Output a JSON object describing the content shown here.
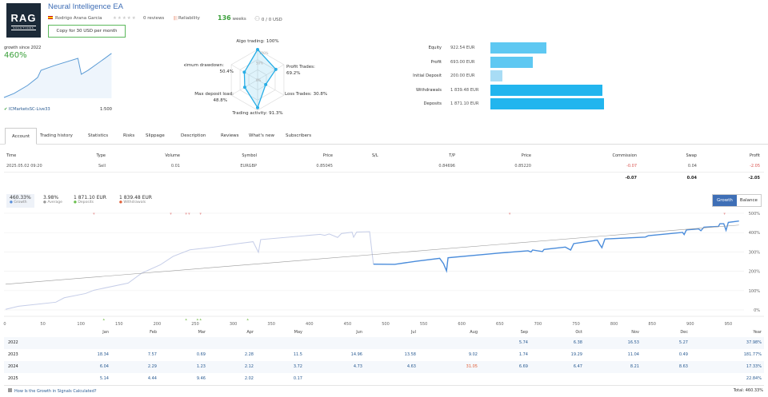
{
  "header": {
    "logo_text": "RAG",
    "logo_sub": "SOLUTIONS",
    "title": "Neural Intelligence EA",
    "author": "Rodrigo Arana Garcia",
    "reviews": "0 reviews",
    "reliability": "Reliability",
    "weeks_value": "136",
    "weeks_label": "weeks",
    "subscribers_funds": "0 / 0 USD",
    "copy_button": "Copy for 30 USD per month",
    "stars": 0
  },
  "summary": {
    "growth_label": "growth since 2022",
    "growth_value": "460%",
    "broker": "ICMarketsSC-Live33",
    "leverage": "1:500"
  },
  "radar": {
    "axes": [
      {
        "label": "Algo trading:",
        "value_text": "100%",
        "value": 100
      },
      {
        "label": "Profit Trades:",
        "value_text": "69.2%",
        "value": 69.2
      },
      {
        "label": "Loss Trades:",
        "value_text": "30.8%",
        "value": 30.8
      },
      {
        "label": "Trading activity:",
        "value_text": "91.3%",
        "value": 91.3
      },
      {
        "label": "Max deposit load:",
        "value_text": "48.8%",
        "value": 48.8
      },
      {
        "label": "Maximum drawdown:",
        "value_text": "50.4%",
        "value": 50.4
      }
    ],
    "grid_labels": [
      "100%",
      "50%",
      "0%"
    ],
    "color": "#29aee6"
  },
  "balance_bars": [
    {
      "label": "Equity",
      "value_text": "922.54 EUR",
      "value": 922.54,
      "color": "#5ec8f2"
    },
    {
      "label": "Profit",
      "value_text": "693.00 EUR",
      "value": 693.0,
      "color": "#5ec8f2"
    },
    {
      "label": "Initial Deposit",
      "value_text": "200.00 EUR",
      "value": 200.0,
      "color": "#a8dcf5"
    },
    {
      "label": "Withdrawals",
      "value_text": "1 839.48 EUR",
      "value": 1839.48,
      "color": "#22b5ee"
    },
    {
      "label": "Deposits",
      "value_text": "1 871.10 EUR",
      "value": 1871.1,
      "color": "#22b5ee"
    }
  ],
  "tabs": [
    "Account",
    "Trading history",
    "Statistics",
    "Risks",
    "Slippage",
    "Description",
    "Reviews",
    "What's new",
    "Subscribers"
  ],
  "positions": {
    "headers": [
      "Time",
      "Type",
      "Volume",
      "Symbol",
      "Price",
      "S/L",
      "T/P",
      "Price",
      "Commission",
      "Swap",
      "Profit"
    ],
    "rows": [
      [
        "2025.05.02 09:20",
        "Sell",
        "0.01",
        "EURGBP",
        "0.85045",
        "",
        "0.84696",
        "0.85220",
        "-0.07",
        "0.04",
        "-2.05"
      ]
    ],
    "totals": {
      "commission": "-0.07",
      "swap": "0.04",
      "profit": "-2.05"
    }
  },
  "stats": [
    {
      "value": "460.33%",
      "label": "Growth",
      "color": "#5b8fd9"
    },
    {
      "value": "3.98%",
      "label": "Average",
      "color": "#999999"
    },
    {
      "value": "1 871.10 EUR",
      "label": "Deposits",
      "color": "#6bbf4e"
    },
    {
      "value": "1 839.48 EUR",
      "label": "Withdrawals",
      "color": "#e0603a"
    }
  ],
  "chart_toggle": {
    "growth": "Growth",
    "balance": "Balance"
  },
  "chart_data": [
    {
      "type": "line",
      "xlim": [
        0,
        964
      ],
      "ylim": [
        0,
        500
      ],
      "grid": true,
      "x_ticks": [
        0,
        50,
        100,
        150,
        200,
        250,
        300,
        350,
        400,
        450,
        500,
        550,
        600,
        650,
        700,
        750,
        800,
        850,
        900,
        950
      ],
      "y_ticks": [
        "0%",
        "100%",
        "200%",
        "300%",
        "400%",
        "500%"
      ],
      "series": [
        {
          "color": "#c5cde8",
          "points": [
            [
              1,
              3
            ],
            [
              18,
              19
            ],
            [
              67,
              40
            ],
            [
              78,
              63
            ],
            [
              106,
              85
            ],
            [
              117,
              102
            ],
            [
              162,
              139
            ],
            [
              180,
              191
            ],
            [
              204,
              233
            ],
            [
              221,
              277
            ],
            [
              243,
              311
            ],
            [
              274,
              325
            ],
            [
              306,
              343
            ],
            [
              326,
              353
            ],
            [
              333,
              298
            ],
            [
              336,
              364
            ],
            [
              414,
              391
            ],
            [
              420,
              386
            ],
            [
              426,
              393
            ],
            [
              437,
              375
            ],
            [
              442,
              395
            ],
            [
              456,
              402
            ],
            [
              458,
              376
            ],
            [
              462,
              403
            ],
            [
              479,
              405
            ],
            [
              484,
              237
            ]
          ]
        },
        {
          "color": "#4a8cdb",
          "points": [
            [
              484,
              237
            ],
            [
              512,
              236
            ],
            [
              540,
              252
            ],
            [
              571,
              267
            ],
            [
              576,
              240
            ],
            [
              580,
              202
            ],
            [
              582,
              270
            ],
            [
              652,
              295
            ],
            [
              687,
              306
            ],
            [
              691,
              300
            ],
            [
              693,
              310
            ],
            [
              706,
              302
            ],
            [
              708,
              313
            ],
            [
              736,
              325
            ],
            [
              743,
              310
            ],
            [
              747,
              343
            ],
            [
              778,
              361
            ],
            [
              781,
              340
            ],
            [
              784,
              322
            ],
            [
              788,
              367
            ],
            [
              841,
              377
            ],
            [
              845,
              384
            ],
            [
              890,
              401
            ],
            [
              892,
              390
            ],
            [
              895,
              414
            ],
            [
              911,
              419
            ],
            [
              914,
              410
            ],
            [
              918,
              428
            ],
            [
              937,
              432
            ],
            [
              939,
              446
            ],
            [
              944,
              446
            ],
            [
              947,
              412
            ],
            [
              950,
              453
            ],
            [
              964,
              460
            ]
          ]
        },
        {
          "color": "#999999",
          "points": [
            [
              1,
              133
            ],
            [
              964,
              439
            ]
          ]
        }
      ],
      "withdrawal_markers": [
        117,
        218,
        238,
        242,
        257,
        663,
        945
      ],
      "deposit_markers": [
        130,
        238,
        253,
        257,
        319
      ]
    },
    {
      "type": "line",
      "title": "growth since 2022",
      "points": [
        [
          "2022-09",
          0
        ],
        [
          "2022-12",
          42
        ],
        [
          "2023-04",
          125
        ],
        [
          "2023-07",
          208
        ],
        [
          "2023-08",
          283
        ],
        [
          "2023-12",
          333
        ],
        [
          "2024-07",
          408
        ],
        [
          "2024-08",
          242
        ],
        [
          "2024-10",
          283
        ],
        [
          "2025-03",
          408
        ],
        [
          "2025-05",
          460
        ]
      ],
      "color": "#5b9bd5"
    }
  ],
  "monthly": {
    "headers": [
      "",
      "Jan",
      "Feb",
      "Mar",
      "Apr",
      "May",
      "Jun",
      "Jul",
      "Aug",
      "Sep",
      "Oct",
      "Nov",
      "Dec",
      "Year"
    ],
    "rows": [
      [
        "2022",
        "",
        "",
        "",
        "",
        "",
        "",
        "",
        "",
        "5.74",
        "6.38",
        "16.53",
        "5.27",
        "37.98%"
      ],
      [
        "2023",
        "18.34",
        "7.57",
        "0.69",
        "2.28",
        "11.5",
        "14.96",
        "13.58",
        "9.02",
        "1.74",
        "19.29",
        "11.04",
        "0.49",
        "181.77%"
      ],
      [
        "2024",
        "6.04",
        "2.29",
        "1.23",
        "2.12",
        "3.72",
        "4.73",
        "4.63",
        "31.05",
        "6.69",
        "6.47",
        "8.21",
        "8.63",
        "17.33%"
      ],
      [
        "2025",
        "5.14",
        "4.44",
        "9.46",
        "2.02",
        "0.17",
        "",
        "",
        "",
        "",
        "",
        "",
        "",
        "22.84%"
      ]
    ],
    "negative": [
      [
        "2024",
        "Aug"
      ]
    ]
  },
  "footer": {
    "link": "How Is the Growth in Signals Calculated?",
    "total": "Total: 460.33%"
  }
}
